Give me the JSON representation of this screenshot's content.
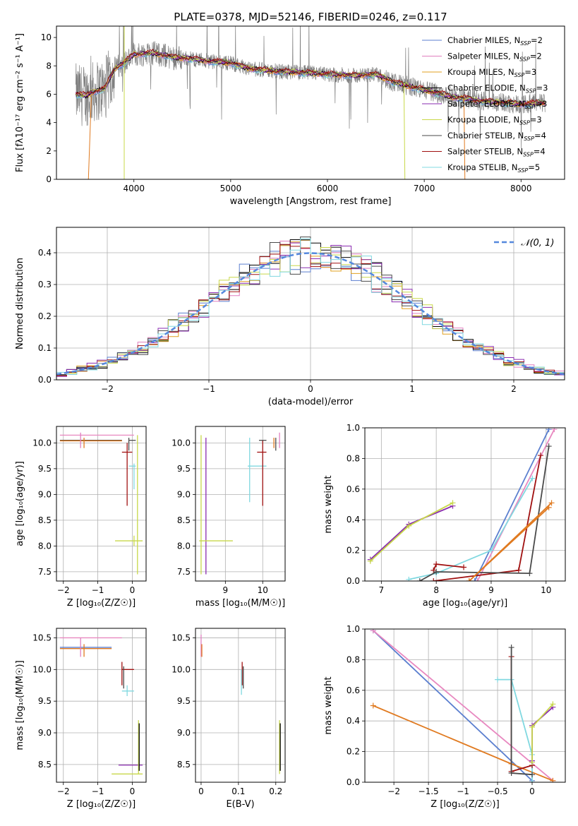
{
  "figure": {
    "title": "PLATE=0378, MJD=52146, FIBERID=0246, z=0.117"
  },
  "colors": {
    "chab_miles": "#5b7fcf",
    "salp_miles": "#e07fbf",
    "krou_miles": "#e0a020",
    "chab_elodie": "#000000",
    "salp_elodie": "#8a2bb0",
    "krou_elodie": "#c8d84a",
    "chab_stelib": "#4a4a4a",
    "salp_stelib": "#a01010",
    "krou_stelib": "#80d8e0",
    "orange": "#e07a20",
    "spectrum": "#808080",
    "pink": "#e888c0",
    "norm": "#5588dd"
  },
  "chart_data": [
    {
      "id": "spectrum",
      "type": "line",
      "xlabel": "wavelength [Angstrom, rest frame]",
      "ylabel": "Flux [fλ10⁻¹⁷ erg cm⁻² s⁻¹ A⁻¹]",
      "xlim": [
        3200,
        8450
      ],
      "ylim": [
        0,
        10.8
      ],
      "xticks": [
        4000,
        5000,
        6000,
        7000,
        8000
      ],
      "yticks": [
        0,
        2,
        4,
        6,
        8,
        10
      ],
      "legend_position": "top-right",
      "legend": [
        {
          "label": "Chabrier MILES, N",
          "sub": "SSP",
          "suffix": "=2",
          "color": "chab_miles"
        },
        {
          "label": "Salpeter MILES, N",
          "sub": "SSP",
          "suffix": "=2",
          "color": "salp_miles"
        },
        {
          "label": "Kroupa MILES, N",
          "sub": "SSP",
          "suffix": "=3",
          "color": "krou_miles"
        },
        {
          "label": "Chabrier ELODIE, N",
          "sub": "SSP",
          "suffix": "=3",
          "color": "chab_elodie"
        },
        {
          "label": "Salpeter ELODIE, N",
          "sub": "SSP",
          "suffix": "=3",
          "color": "salp_elodie"
        },
        {
          "label": "Kroupa ELODIE, N",
          "sub": "SSP",
          "suffix": "=3",
          "color": "krou_elodie"
        },
        {
          "label": "Chabrier STELIB, N",
          "sub": "SSP",
          "suffix": "=4",
          "color": "chab_stelib"
        },
        {
          "label": "Salpeter STELIB, N",
          "sub": "SSP",
          "suffix": "=4",
          "color": "salp_stelib"
        },
        {
          "label": "Kroupa STELIB, N",
          "sub": "SSP",
          "suffix": "=5",
          "color": "krou_stelib"
        }
      ],
      "model_continuum": {
        "x": [
          3400,
          3500,
          3600,
          3700,
          3800,
          3900,
          4000,
          4200,
          4400,
          4600,
          4800,
          5000,
          5200,
          5500,
          5800,
          6000,
          6300,
          6500,
          6700,
          7000,
          7300,
          7600,
          8000,
          8250
        ],
        "y": [
          6.0,
          5.9,
          6.2,
          6.4,
          7.8,
          8.2,
          8.8,
          8.9,
          8.6,
          8.5,
          8.3,
          8.2,
          7.8,
          7.6,
          7.5,
          7.4,
          7.3,
          7.4,
          6.8,
          6.3,
          5.8,
          5.5,
          5.3,
          5.4
        ]
      }
    },
    {
      "id": "residuals",
      "type": "line",
      "xlabel": "(data-model)/error",
      "ylabel": "Normed distribution",
      "xlim": [
        -2.5,
        2.5
      ],
      "ylim": [
        0,
        0.48
      ],
      "xticks": [
        -2,
        -1,
        0,
        1,
        2
      ],
      "yticks": [
        0.0,
        0.1,
        0.2,
        0.3,
        0.4
      ],
      "legend_position": "top-right",
      "legend": [
        {
          "label": "𝒩(0, 1)",
          "color": "norm"
        }
      ],
      "bin_width": 0.1
    },
    {
      "id": "age_vs_Z",
      "type": "scatter",
      "xlabel": "Z [log₁₀(Z/Z☉)]",
      "ylabel": "age  [log₁₀(age/yr)]",
      "xlim": [
        -2.2,
        0.4
      ],
      "ylim": [
        7.32,
        10.32
      ],
      "xticks": [
        -2,
        -1,
        0
      ],
      "yticks": [
        7.5,
        8.0,
        8.5,
        9.0,
        9.5,
        10.0
      ],
      "segments": [
        {
          "x": [
            -2.1,
            0.05
          ],
          "y": [
            10.15,
            10.15
          ],
          "color": "pink"
        },
        {
          "x": [
            -2.1,
            -0.3
          ],
          "y": [
            10.05,
            10.05
          ],
          "color": "chab_stelib"
        },
        {
          "x": [
            -2.1,
            -0.3
          ],
          "y": [
            10.04,
            10.04
          ],
          "color": "orange"
        },
        {
          "x": [
            -1.5,
            -1.5
          ],
          "y": [
            9.9,
            10.2
          ],
          "color": "salp_miles"
        },
        {
          "x": [
            -1.4,
            -1.4
          ],
          "y": [
            9.9,
            10.1
          ],
          "color": "orange"
        },
        {
          "x": [
            -0.3,
            0.0
          ],
          "y": [
            9.82,
            9.82
          ],
          "color": "salp_stelib"
        },
        {
          "x": [
            -0.1,
            -0.1
          ],
          "y": [
            9.85,
            10.1
          ],
          "color": "chab_stelib"
        },
        {
          "x": [
            -0.1,
            0.1
          ],
          "y": [
            10.05,
            10.05
          ],
          "color": "chab_stelib"
        },
        {
          "x": [
            -0.15,
            -0.15
          ],
          "y": [
            8.78,
            10.0
          ],
          "color": "salp_stelib"
        },
        {
          "x": [
            -0.1,
            0.1
          ],
          "y": [
            9.55,
            9.55
          ],
          "color": "krou_stelib"
        },
        {
          "x": [
            0.05,
            0.05
          ],
          "y": [
            9.1,
            9.6
          ],
          "color": "krou_stelib"
        },
        {
          "x": [
            -0.5,
            0.3
          ],
          "y": [
            8.1,
            8.1
          ],
          "color": "krou_elodie"
        },
        {
          "x": [
            0.15,
            0.15
          ],
          "y": [
            7.45,
            10.15
          ],
          "color": "krou_elodie"
        },
        {
          "x": [
            0.05,
            0.05
          ],
          "y": [
            8.0,
            8.2
          ],
          "color": "krou_elodie"
        }
      ]
    },
    {
      "id": "age_vs_mass",
      "type": "scatter",
      "xlabel": "mass [log₁₀(M/M☉)]",
      "xlim": [
        8.2,
        10.6
      ],
      "ylim": [
        7.32,
        10.32
      ],
      "xticks": [
        9,
        10
      ],
      "yticks": [
        7.5,
        8.0,
        8.5,
        9.0,
        9.5,
        10.0
      ],
      "segments": [
        {
          "x": [
            8.35,
            8.35
          ],
          "y": [
            7.45,
            10.15
          ],
          "color": "krou_elodie"
        },
        {
          "x": [
            8.48,
            8.48
          ],
          "y": [
            7.45,
            10.1
          ],
          "color": "salp_elodie"
        },
        {
          "x": [
            8.3,
            9.2
          ],
          "y": [
            8.1,
            8.1
          ],
          "color": "krou_elodie"
        },
        {
          "x": [
            9.65,
            9.65
          ],
          "y": [
            8.85,
            10.1
          ],
          "color": "krou_stelib"
        },
        {
          "x": [
            9.6,
            10.1
          ],
          "y": [
            9.55,
            9.55
          ],
          "color": "krou_stelib"
        },
        {
          "x": [
            10.0,
            10.0
          ],
          "y": [
            8.78,
            10.05
          ],
          "color": "salp_stelib"
        },
        {
          "x": [
            9.85,
            10.1
          ],
          "y": [
            9.82,
            9.82
          ],
          "color": "salp_stelib"
        },
        {
          "x": [
            9.9,
            10.1
          ],
          "y": [
            10.05,
            10.05
          ],
          "color": "chab_stelib"
        },
        {
          "x": [
            10.3,
            10.3
          ],
          "y": [
            9.9,
            10.1
          ],
          "color": "orange"
        },
        {
          "x": [
            10.35,
            10.35
          ],
          "y": [
            9.85,
            10.1
          ],
          "color": "chab_stelib"
        },
        {
          "x": [
            10.45,
            10.45
          ],
          "y": [
            9.9,
            10.2
          ],
          "color": "salp_miles"
        }
      ]
    },
    {
      "id": "massweight_vs_age",
      "type": "line",
      "xlabel": "age  [log₁₀(age/yr)]",
      "ylabel": "mass weight",
      "xlim": [
        6.7,
        10.35
      ],
      "ylim": [
        0,
        1
      ],
      "xticks": [
        7,
        8,
        9,
        10
      ],
      "yticks": [
        0.0,
        0.2,
        0.4,
        0.6,
        0.8,
        1.0
      ],
      "series": [
        {
          "color": "salp_elodie",
          "x": [
            6.8,
            7.5,
            8.3
          ],
          "y": [
            0.14,
            0.37,
            0.49
          ]
        },
        {
          "color": "krou_elodie",
          "x": [
            6.8,
            7.5,
            8.3
          ],
          "y": [
            0.13,
            0.36,
            0.51
          ]
        },
        {
          "color": "chab_miles",
          "x": [
            8.7,
            10.05
          ],
          "y": [
            0.0,
            0.99
          ]
        },
        {
          "color": "pink",
          "x": [
            8.75,
            10.15
          ],
          "y": [
            0.0,
            0.99
          ]
        },
        {
          "color": "krou_stelib",
          "x": [
            7.5,
            8.0,
            9.0,
            9.75
          ],
          "y": [
            0.01,
            0.05,
            0.2,
            0.67
          ]
        },
        {
          "color": "salp_stelib",
          "x": [
            7.95,
            9.5,
            9.9
          ],
          "y": [
            0.0,
            0.07,
            0.82
          ]
        },
        {
          "color": "salp_stelib",
          "x": [
            7.95,
            8.0,
            8.5
          ],
          "y": [
            0.07,
            0.11,
            0.09
          ]
        },
        {
          "color": "chab_stelib",
          "x": [
            7.7,
            8.0,
            9.7,
            10.05
          ],
          "y": [
            0.0,
            0.06,
            0.05,
            0.88
          ]
        },
        {
          "color": "orange",
          "x": [
            8.6,
            10.05
          ],
          "y": [
            0.0,
            0.48
          ]
        },
        {
          "color": "orange",
          "x": [
            8.6,
            10.1
          ],
          "y": [
            0.0,
            0.51
          ]
        }
      ]
    },
    {
      "id": "mass_vs_Z",
      "type": "scatter",
      "xlabel": "Z [log₁₀(Z/Z☉)]",
      "ylabel": "mass [log₁₀(M/M☉)]",
      "xlim": [
        -2.2,
        0.4
      ],
      "ylim": [
        8.22,
        10.65
      ],
      "xticks": [
        -2,
        -1,
        0
      ],
      "yticks": [
        8.5,
        9.0,
        9.5,
        10.0,
        10.5
      ],
      "segments": [
        {
          "x": [
            -2.1,
            -0.3
          ],
          "y": [
            10.5,
            10.5
          ],
          "color": "pink"
        },
        {
          "x": [
            -2.1,
            -0.6
          ],
          "y": [
            10.35,
            10.35
          ],
          "color": "chab_miles"
        },
        {
          "x": [
            -2.1,
            -0.6
          ],
          "y": [
            10.33,
            10.33
          ],
          "color": "orange"
        },
        {
          "x": [
            -1.5,
            -1.5
          ],
          "y": [
            10.2,
            10.5
          ],
          "color": "salp_miles"
        },
        {
          "x": [
            -1.4,
            -1.4
          ],
          "y": [
            10.2,
            10.4
          ],
          "color": "orange"
        },
        {
          "x": [
            -0.3,
            0.05
          ],
          "y": [
            10.0,
            10.0
          ],
          "color": "salp_stelib"
        },
        {
          "x": [
            -0.3,
            -0.3
          ],
          "y": [
            9.75,
            10.12
          ],
          "color": "salp_stelib"
        },
        {
          "x": [
            -0.25,
            -0.25
          ],
          "y": [
            9.7,
            10.05
          ],
          "color": "chab_stelib"
        },
        {
          "x": [
            -0.3,
            0.05
          ],
          "y": [
            9.66,
            9.66
          ],
          "color": "krou_stelib"
        },
        {
          "x": [
            -0.15,
            -0.15
          ],
          "y": [
            9.58,
            9.75
          ],
          "color": "krou_stelib"
        },
        {
          "x": [
            -0.4,
            0.3
          ],
          "y": [
            8.49,
            8.49
          ],
          "color": "salp_elodie"
        },
        {
          "x": [
            -0.6,
            0.3
          ],
          "y": [
            8.35,
            8.35
          ],
          "color": "krou_elodie"
        },
        {
          "x": [
            0.18,
            0.18
          ],
          "y": [
            8.35,
            9.2
          ],
          "color": "krou_elodie"
        },
        {
          "x": [
            0.2,
            0.2
          ],
          "y": [
            8.4,
            9.15
          ],
          "color": "chab_elodie"
        }
      ]
    },
    {
      "id": "mass_vs_ebv",
      "type": "scatter",
      "xlabel": "E(B-V)",
      "xlim": [
        -0.015,
        0.225
      ],
      "ylim": [
        8.22,
        10.65
      ],
      "xticks": [
        0.0,
        0.1,
        0.2
      ],
      "yticks": [
        8.5,
        9.0,
        9.5,
        10.0,
        10.5
      ],
      "segments": [
        {
          "x": [
            0.0,
            0.0
          ],
          "y": [
            10.2,
            10.55
          ],
          "color": "salp_miles"
        },
        {
          "x": [
            0.002,
            0.002
          ],
          "y": [
            10.2,
            10.4
          ],
          "color": "orange"
        },
        {
          "x": [
            0.11,
            0.11
          ],
          "y": [
            9.75,
            10.12
          ],
          "color": "salp_stelib"
        },
        {
          "x": [
            0.113,
            0.113
          ],
          "y": [
            9.7,
            10.05
          ],
          "color": "chab_stelib"
        },
        {
          "x": [
            0.108,
            0.108
          ],
          "y": [
            9.6,
            10.0
          ],
          "color": "krou_stelib"
        },
        {
          "x": [
            0.21,
            0.21
          ],
          "y": [
            8.35,
            9.2
          ],
          "color": "krou_elodie"
        },
        {
          "x": [
            0.212,
            0.212
          ],
          "y": [
            8.4,
            9.15
          ],
          "color": "chab_elodie"
        }
      ]
    },
    {
      "id": "massweight_vs_Z",
      "type": "line",
      "xlabel": "Z [log₁₀(Z/Z☉)]",
      "ylabel": "mass weight",
      "xlim": [
        -2.42,
        0.48
      ],
      "ylim": [
        0,
        1
      ],
      "xticks": [
        -2.0,
        -1.5,
        -1.0,
        -0.5,
        0.0
      ],
      "yticks": [
        0.0,
        0.2,
        0.4,
        0.6,
        0.8,
        1.0
      ],
      "series": [
        {
          "color": "chab_miles",
          "x": [
            -2.3,
            0.0
          ],
          "y": [
            0.99,
            0.01
          ]
        },
        {
          "color": "pink",
          "x": [
            -2.3,
            0.3
          ],
          "y": [
            0.99,
            0.01
          ]
        },
        {
          "color": "orange",
          "x": [
            -2.3,
            -0.3,
            0.3
          ],
          "y": [
            0.5,
            0.12,
            0.01
          ]
        },
        {
          "color": "krou_stelib",
          "x": [
            -0.5,
            -0.3,
            0.0,
            0.0
          ],
          "y": [
            0.67,
            0.67,
            0.18,
            0.0
          ]
        },
        {
          "color": "salp_stelib",
          "x": [
            -0.3,
            -0.3,
            0.0
          ],
          "y": [
            0.82,
            0.07,
            0.11
          ]
        },
        {
          "color": "chab_stelib",
          "x": [
            -0.3,
            -0.3,
            0.0
          ],
          "y": [
            0.88,
            0.06,
            0.05
          ]
        },
        {
          "color": "salp_elodie",
          "x": [
            0.0,
            0.0,
            0.3
          ],
          "y": [
            0.14,
            0.37,
            0.49
          ]
        },
        {
          "color": "krou_elodie",
          "x": [
            0.0,
            0.0,
            0.3
          ],
          "y": [
            0.13,
            0.36,
            0.51
          ]
        }
      ]
    }
  ]
}
